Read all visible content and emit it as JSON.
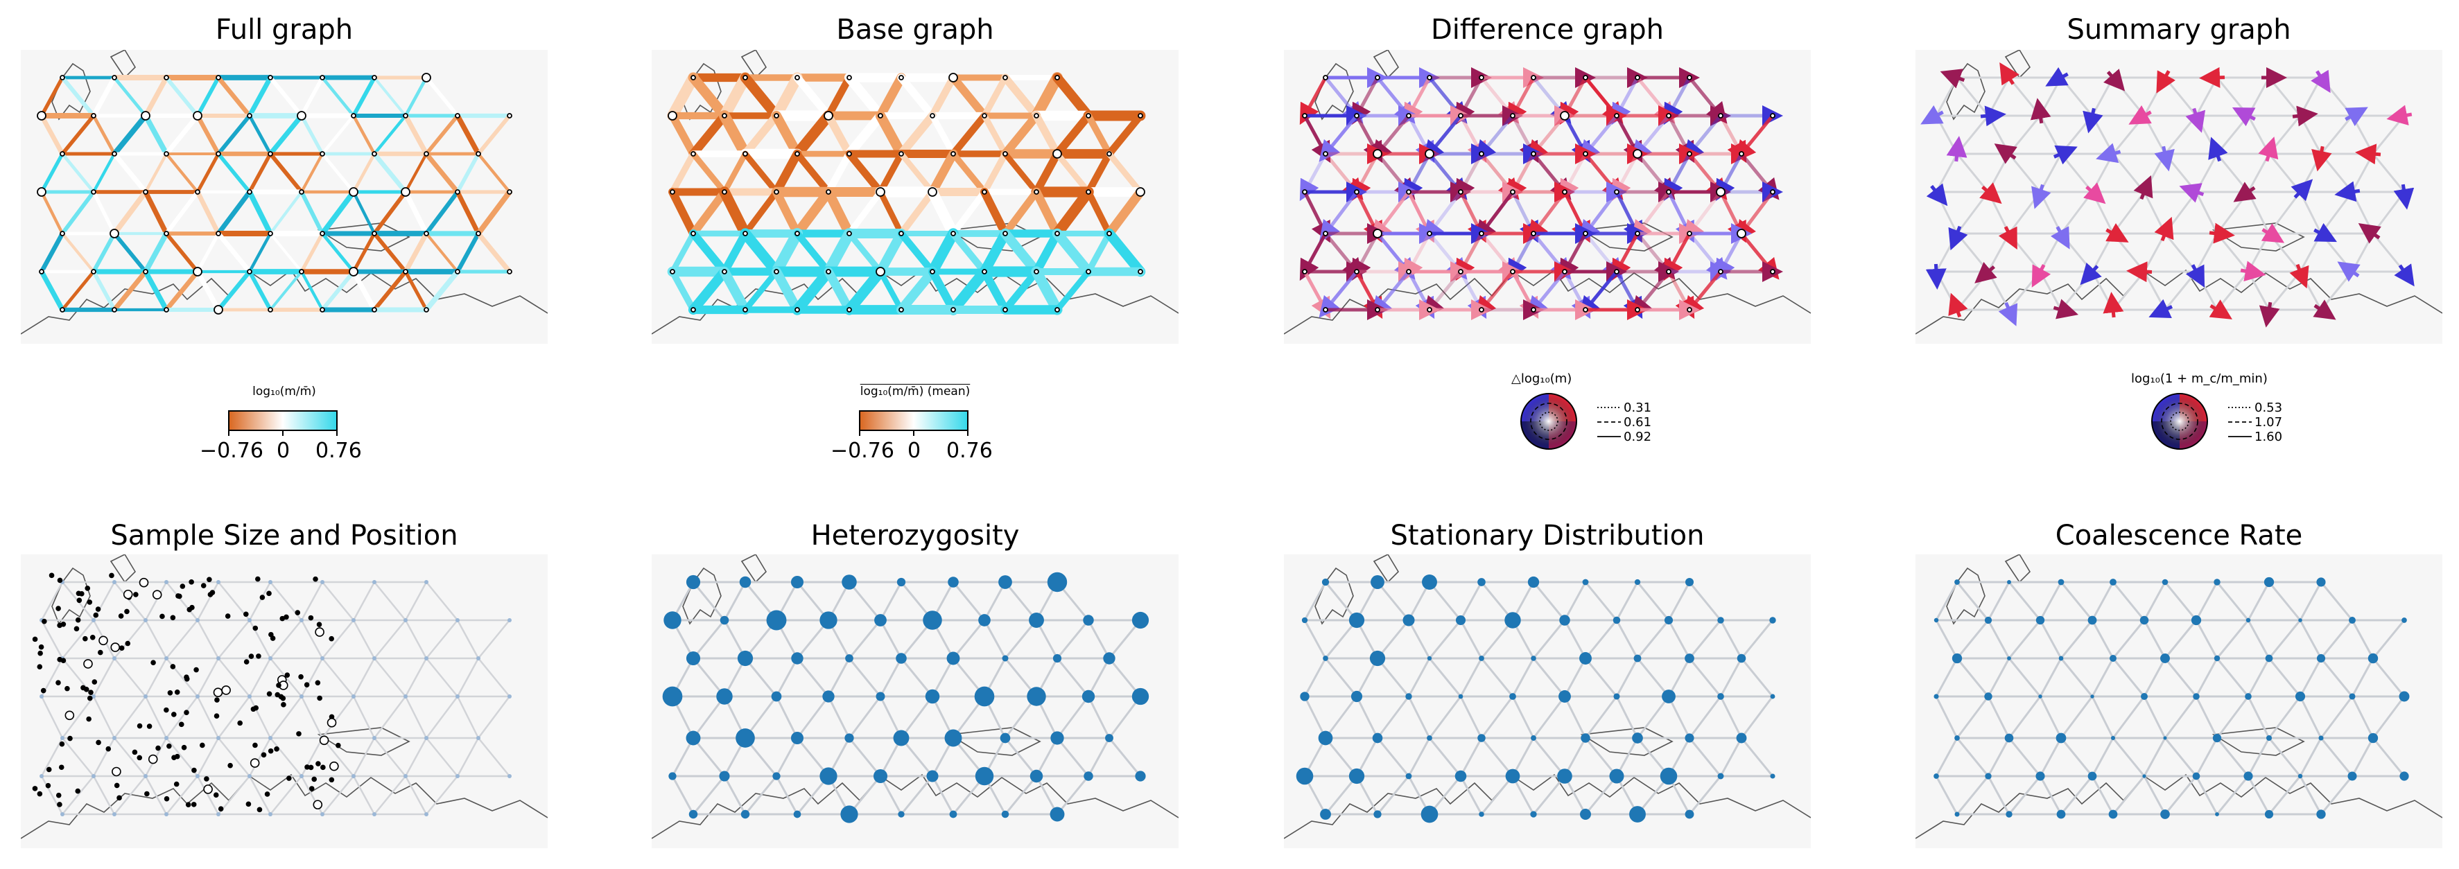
{
  "panels": [
    {
      "title": "Full graph"
    },
    {
      "title": "Base graph"
    },
    {
      "title": "Difference graph"
    },
    {
      "title": "Summary graph"
    },
    {
      "title": "Sample Size and Position"
    },
    {
      "title": "Heterozygosity"
    },
    {
      "title": "Stationary Distribution"
    },
    {
      "title": "Coalescence Rate"
    }
  ],
  "colorbars": [
    {
      "label": "log₁₀(m/m̄)",
      "ticks": [
        "−0.76",
        "0",
        "0.76"
      ]
    },
    {
      "label": "log₁₀(m/m̄) (mean)",
      "ticks": [
        "−0.76",
        "0",
        "0.76"
      ]
    }
  ],
  "circle_legends": [
    {
      "label": "△log₁₀(m)",
      "entries": [
        "0.31",
        "0.61",
        "0.92"
      ]
    },
    {
      "label": "log₁₀(1 + m_c/m_min)",
      "entries": [
        "0.53",
        "1.07",
        "1.60"
      ]
    }
  ],
  "colors": {
    "orange": "#d9661f",
    "cyan": "#34d8ea",
    "red": "#e0253a",
    "blue": "#3b33d6",
    "node": "#1f77b4",
    "grid": "#c9cdd3"
  }
}
